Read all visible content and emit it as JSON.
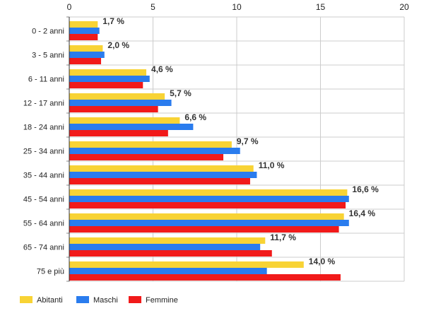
{
  "chart_data": {
    "type": "bar",
    "orientation": "horizontal",
    "categories": [
      "0 - 2 anni",
      "3 - 5 anni",
      "6 - 11 anni",
      "12 - 17 anni",
      "18 - 24 anni",
      "25 - 34 anni",
      "35 - 44 anni",
      "45 - 54 anni",
      "55 - 64 anni",
      "65 - 74 anni",
      "75 e più"
    ],
    "series": [
      {
        "name": "Abitanti",
        "color": "#f8d335",
        "values": [
          1.7,
          2.0,
          4.6,
          5.7,
          6.6,
          9.7,
          11.0,
          16.6,
          16.4,
          11.7,
          14.0
        ]
      },
      {
        "name": "Maschi",
        "color": "#2a7cee",
        "values": [
          1.8,
          2.1,
          4.8,
          6.1,
          7.4,
          10.2,
          11.2,
          16.7,
          16.7,
          11.4,
          11.8
        ]
      },
      {
        "name": "Femmine",
        "color": "#f11a1a",
        "values": [
          1.7,
          1.9,
          4.4,
          5.3,
          5.9,
          9.2,
          10.8,
          16.5,
          16.1,
          12.1,
          16.2
        ]
      }
    ],
    "data_labels": [
      "1,7 %",
      "2,0 %",
      "4,6 %",
      "5,7 %",
      "6,6 %",
      "9,7 %",
      "11,0 %",
      "16,6 %",
      "16,4 %",
      "11,7 %",
      "14,0 %"
    ],
    "x_ticks": [
      "0",
      "5",
      "10",
      "15",
      "20"
    ],
    "xlim": [
      0,
      20
    ],
    "grid": true,
    "axis_position": "top",
    "legend_position": "bottom-left"
  }
}
